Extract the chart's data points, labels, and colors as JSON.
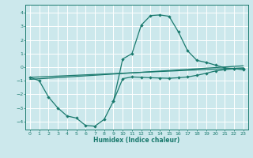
{
  "xlabel": "Humidex (Indice chaleur)",
  "xlim": [
    -0.5,
    23.5
  ],
  "ylim": [
    -4.6,
    4.6
  ],
  "yticks": [
    -4,
    -3,
    -2,
    -1,
    0,
    1,
    2,
    3,
    4
  ],
  "xticks": [
    0,
    1,
    2,
    3,
    4,
    5,
    6,
    7,
    8,
    9,
    10,
    11,
    12,
    13,
    14,
    15,
    16,
    17,
    18,
    19,
    20,
    21,
    22,
    23
  ],
  "bg_color": "#cce8ec",
  "line_color": "#1a7a6e",
  "grid_color": "#ffffff",
  "curve_lower_x": [
    0,
    1,
    2,
    3,
    4,
    5,
    6,
    7,
    8,
    9,
    10,
    11,
    12,
    13,
    14,
    15,
    16,
    17,
    18,
    19,
    20,
    21,
    22,
    23
  ],
  "curve_lower_y": [
    -0.75,
    -1.0,
    -2.2,
    -3.0,
    -3.6,
    -3.75,
    -4.3,
    -4.35,
    -3.85,
    -2.5,
    -0.85,
    -0.72,
    -0.75,
    -0.78,
    -0.8,
    -0.82,
    -0.78,
    -0.72,
    -0.6,
    -0.45,
    -0.28,
    -0.18,
    -0.12,
    -0.1
  ],
  "curve_upper_x": [
    9,
    10,
    11,
    12,
    13,
    14,
    15,
    16,
    17,
    18,
    19,
    20,
    21,
    22,
    23
  ],
  "curve_upper_y": [
    -2.5,
    0.6,
    1.0,
    3.1,
    3.8,
    3.85,
    3.75,
    2.6,
    1.2,
    0.5,
    0.35,
    0.15,
    -0.05,
    -0.1,
    -0.2
  ],
  "line1_x": [
    0,
    23
  ],
  "line1_y": [
    -0.75,
    -0.05
  ],
  "line2_x": [
    0,
    23
  ],
  "line2_y": [
    -0.9,
    0.1
  ]
}
